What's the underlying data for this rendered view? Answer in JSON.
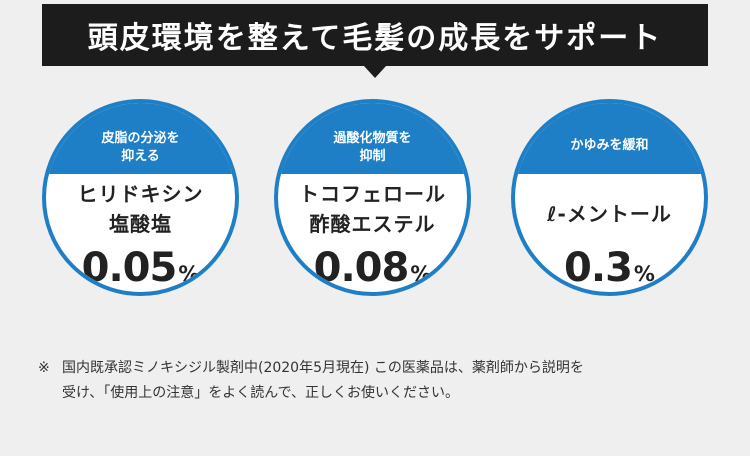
{
  "headline": "頭皮環境を整えて毛髪の成長をサポート",
  "ingredients": [
    {
      "caption_lines": [
        "皮脂の分泌を",
        "抑える"
      ],
      "name_lines": [
        "ヒリドキシン",
        "塩酸塩"
      ],
      "percent_value": "0.05",
      "percent_unit": "%"
    },
    {
      "caption_lines": [
        "過酸化物質を",
        "抑制"
      ],
      "name_lines": [
        "トコフェロール",
        "酢酸エステル"
      ],
      "percent_value": "0.08",
      "percent_unit": "%"
    },
    {
      "caption_lines": [
        "かゆみを緩和"
      ],
      "name_lines": [
        "ℓ-メントール"
      ],
      "percent_value": "0.3",
      "percent_unit": "%"
    }
  ],
  "footnote": {
    "mark": "※",
    "line1": "国内既承認ミノキシジル製剤中(2020年5月現在) この医薬品は、薬剤師から説明を",
    "line2": "受け、「使用上の注意」をよく読んで、正しくお使いください。"
  },
  "colors": {
    "accent": "#1f7fc6",
    "banner": "#1c1c1c",
    "background": "#efefef"
  }
}
